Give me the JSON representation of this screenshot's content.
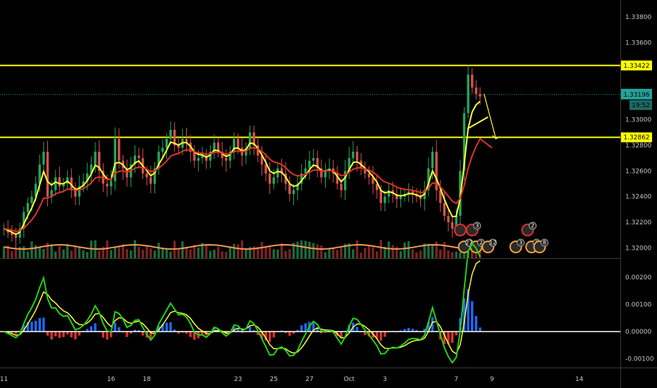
{
  "chart_data": {
    "type": "candlestick",
    "price_axis": {
      "ticks": [
        "1.33800",
        "1.33600",
        "1.33422",
        "1.33196",
        "1.33000",
        "1.32862",
        "1.32800",
        "1.32600",
        "1.32400",
        "1.32200",
        "1.32000"
      ],
      "tick_values": [
        1.338,
        1.336,
        1.33422,
        1.33196,
        1.33,
        1.32862,
        1.328,
        1.326,
        1.324,
        1.322,
        1.32
      ],
      "range": [
        1.3192,
        1.3391
      ]
    },
    "horizontal_levels": [
      {
        "value": 1.33422,
        "label": "1.33422",
        "color": "#ffff00"
      },
      {
        "value": 1.32862,
        "label": "1.32862",
        "color": "#ffff00"
      }
    ],
    "last_price": {
      "value": 1.33196,
      "label": "1.33196",
      "countdown": "19:52",
      "color": "#22a39a"
    },
    "x_axis": {
      "ticks": [
        "11",
        "16",
        "18",
        "23",
        "25",
        "27",
        "Oct",
        "3",
        "7",
        "9",
        "14"
      ],
      "positions": [
        0,
        27,
        36,
        59,
        68,
        77,
        87,
        96,
        114,
        123,
        145
      ],
      "range": [
        -1,
        155
      ]
    },
    "close": [
      1.3215,
      1.3212,
      1.321,
      1.3208,
      1.3215,
      1.3228,
      1.3235,
      1.324,
      1.325,
      1.3265,
      1.3275,
      1.324,
      1.3245,
      1.3255,
      1.3248,
      1.325,
      1.3255,
      1.3245,
      1.324,
      1.3248,
      1.3252,
      1.3258,
      1.3265,
      1.3275,
      1.326,
      1.325,
      1.3248,
      1.3252,
      1.3285,
      1.3268,
      1.3262,
      1.3255,
      1.3265,
      1.3272,
      1.327,
      1.3258,
      1.3255,
      1.325,
      1.3262,
      1.3275,
      1.3278,
      1.3285,
      1.3292,
      1.328,
      1.3278,
      1.3285,
      1.3282,
      1.3275,
      1.3268,
      1.327,
      1.3272,
      1.3268,
      1.3275,
      1.3282,
      1.3275,
      1.327,
      1.3268,
      1.3275,
      1.3285,
      1.3278,
      1.3272,
      1.3278,
      1.329,
      1.328,
      1.3272,
      1.3265,
      1.3258,
      1.325,
      1.3255,
      1.3262,
      1.3258,
      1.325,
      1.3242,
      1.3245,
      1.325,
      1.3258,
      1.3262,
      1.3268,
      1.327,
      1.3262,
      1.3255,
      1.326,
      1.3262,
      1.3258,
      1.325,
      1.3245,
      1.326,
      1.327,
      1.3275,
      1.3268,
      1.3262,
      1.3258,
      1.3255,
      1.325,
      1.3245,
      1.3235,
      1.324,
      1.3245,
      1.3242,
      1.3238,
      1.324,
      1.3242,
      1.3244,
      1.3242,
      1.324,
      1.3238,
      1.3245,
      1.3262,
      1.3275,
      1.3245,
      1.3235,
      1.3225,
      1.322,
      1.3215,
      1.3225,
      1.326,
      1.3305,
      1.3335,
      1.3325,
      1.332,
      1.3318
    ],
    "ema_fast": {
      "name": "",
      "color": "#ffff33"
    },
    "ema_slow": {
      "name": "",
      "color": "#e0322d"
    },
    "slow_projection_end": 1.3278,
    "volume_ma_color": "#f39a55",
    "projection_arrow": {
      "from": [
        121,
        1.332
      ],
      "to": [
        124,
        1.3285
      ],
      "color": "#ffff33"
    },
    "events": [
      {
        "label": "",
        "x": 115,
        "row": "top",
        "color": "#e0322d"
      },
      {
        "label": "3",
        "x": 118,
        "row": "top",
        "color": "#e0322d"
      },
      {
        "label": "2",
        "x": 132,
        "row": "top",
        "color": "#e0322d"
      },
      {
        "label": "27",
        "x": 116,
        "row": "bottom",
        "color": "#f2a340"
      },
      {
        "label": "2",
        "x": 119,
        "row": "bottom",
        "color": "#f2a340"
      },
      {
        "label": "12",
        "x": 122,
        "row": "bottom",
        "color": "#f2a340"
      },
      {
        "label": "3",
        "x": 129,
        "row": "bottom",
        "color": "#f2a340"
      },
      {
        "label": "3",
        "x": 133,
        "row": "bottom",
        "color": "#f2a340"
      },
      {
        "label": "8",
        "x": 135,
        "row": "bottom",
        "color": "#f2a340"
      }
    ],
    "oscillator": {
      "ticks": [
        "0.00200",
        "0.00100",
        "0.00000",
        "-0.00100"
      ],
      "tick_values": [
        0.002,
        0.001,
        0.0,
        -0.001
      ],
      "range": [
        -0.0013,
        0.0026
      ],
      "zero_line_color": "#ffffff",
      "fast_color": "#22d318",
      "signal_color": "#ffff33",
      "positive_hist_color": "#1e6bff",
      "negative_hist_color": "#e0322d"
    },
    "grid": false
  }
}
